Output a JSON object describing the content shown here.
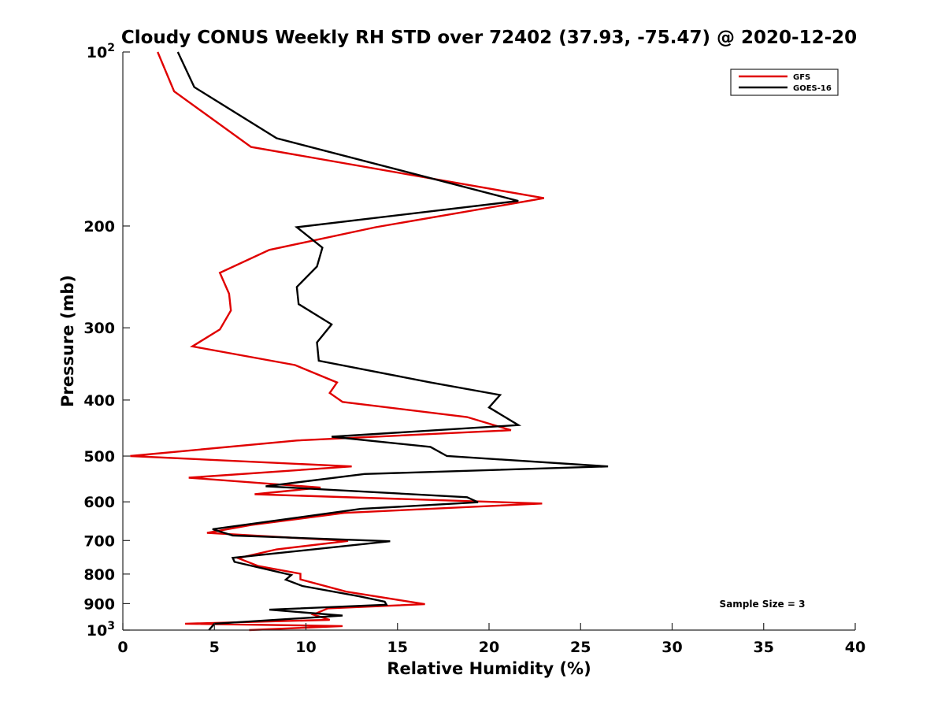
{
  "chart_data": {
    "type": "line",
    "title": "Cloudy CONUS Weekly RH STD over 72402 (37.93, -75.47) @ 2020-12-20",
    "xlabel": "Relative Humidity (%)",
    "ylabel": "Pressure (mb)",
    "xlim": [
      0,
      40
    ],
    "ylim": [
      1000,
      100
    ],
    "yscale": "log",
    "y_reversed": true,
    "xticks": [
      "0",
      "5",
      "10",
      "15",
      "20",
      "25",
      "30",
      "35",
      "40"
    ],
    "yticks": [
      {
        "value": 100,
        "base": "10",
        "exp": "2"
      },
      {
        "value": 200,
        "label": "200"
      },
      {
        "value": 300,
        "label": "300"
      },
      {
        "value": 400,
        "label": "400"
      },
      {
        "value": 500,
        "label": "500"
      },
      {
        "value": 600,
        "label": "600"
      },
      {
        "value": 700,
        "label": "700"
      },
      {
        "value": 800,
        "label": "800"
      },
      {
        "value": 900,
        "label": "900"
      },
      {
        "value": 1000,
        "base": "10",
        "exp": "3"
      }
    ],
    "legend_position": "top-right",
    "grid": false,
    "annotation": "Sample Size = 3",
    "series": [
      {
        "name": "GFS",
        "color": "#e00000",
        "points": [
          [
            1.9,
            100
          ],
          [
            2.8,
            117
          ],
          [
            7.0,
            146
          ],
          [
            23.0,
            179
          ],
          [
            13.8,
            201
          ],
          [
            8.0,
            220
          ],
          [
            5.3,
            241
          ],
          [
            5.8,
            262
          ],
          [
            5.9,
            280
          ],
          [
            5.3,
            302
          ],
          [
            3.8,
            323
          ],
          [
            9.4,
            348
          ],
          [
            11.7,
            373
          ],
          [
            11.3,
            389
          ],
          [
            12.0,
            403
          ],
          [
            18.8,
            428
          ],
          [
            21.2,
            451
          ],
          [
            9.5,
            470
          ],
          [
            0.4,
            500
          ],
          [
            12.5,
            521
          ],
          [
            3.6,
            545
          ],
          [
            10.8,
            567
          ],
          [
            7.2,
            582
          ],
          [
            22.9,
            604
          ],
          [
            12.1,
            627
          ],
          [
            7.0,
            658
          ],
          [
            4.6,
            679
          ],
          [
            12.3,
            701
          ],
          [
            8.4,
            725
          ],
          [
            6.3,
            751
          ],
          [
            7.4,
            775
          ],
          [
            9.7,
            799
          ],
          [
            9.7,
            817
          ],
          [
            12.2,
            858
          ],
          [
            16.5,
            902
          ],
          [
            11.2,
            917
          ],
          [
            10.4,
            940
          ],
          [
            11.3,
            960
          ],
          [
            3.4,
            975
          ],
          [
            12.0,
            984
          ],
          [
            6.9,
            1000
          ]
        ]
      },
      {
        "name": "GOES-16",
        "color": "#000000",
        "points": [
          [
            3.0,
            100
          ],
          [
            3.9,
            115
          ],
          [
            8.4,
            141
          ],
          [
            21.6,
            181
          ],
          [
            9.5,
            201
          ],
          [
            10.9,
            218
          ],
          [
            10.6,
            235
          ],
          [
            9.5,
            255
          ],
          [
            9.6,
            273
          ],
          [
            11.4,
            296
          ],
          [
            10.6,
            318
          ],
          [
            10.7,
            342
          ],
          [
            16.8,
            373
          ],
          [
            20.6,
            392
          ],
          [
            20.0,
            412
          ],
          [
            21.6,
            442
          ],
          [
            11.4,
            463
          ],
          [
            16.8,
            482
          ],
          [
            17.7,
            500
          ],
          [
            26.5,
            521
          ],
          [
            13.2,
            537
          ],
          [
            7.8,
            564
          ],
          [
            18.8,
            589
          ],
          [
            19.4,
            601
          ],
          [
            13.0,
            617
          ],
          [
            4.9,
            669
          ],
          [
            6.0,
            686
          ],
          [
            14.6,
            702
          ],
          [
            6.0,
            750
          ],
          [
            6.1,
            762
          ],
          [
            9.2,
            803
          ],
          [
            8.9,
            818
          ],
          [
            9.8,
            839
          ],
          [
            12.9,
            874
          ],
          [
            14.3,
            893
          ],
          [
            14.4,
            904
          ],
          [
            8.0,
            922
          ],
          [
            12.0,
            944
          ],
          [
            5.0,
            975
          ],
          [
            4.7,
            1000
          ]
        ]
      }
    ]
  }
}
